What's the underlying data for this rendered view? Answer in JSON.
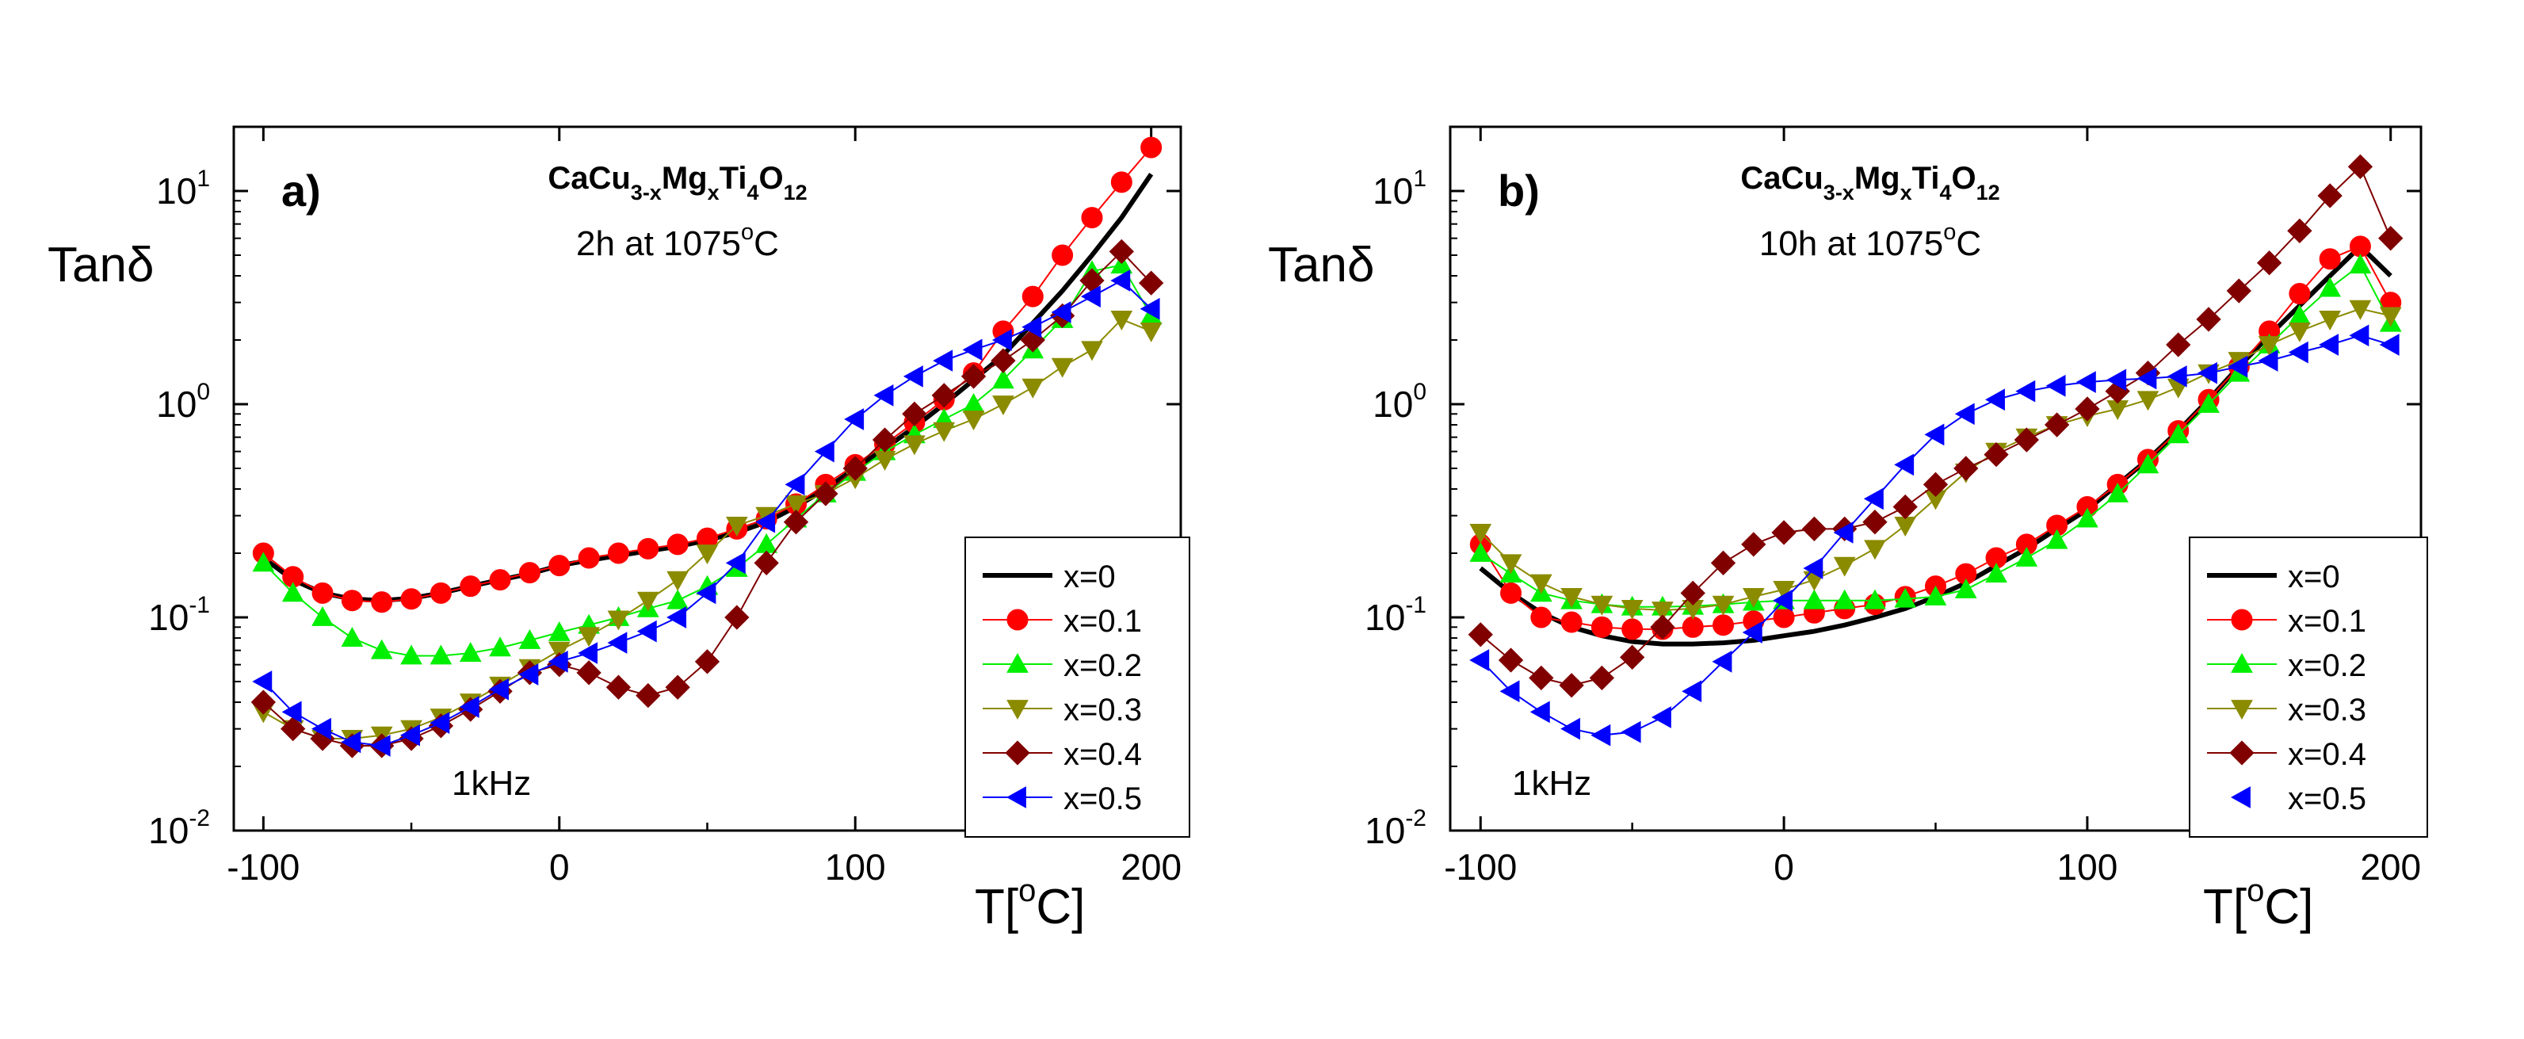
{
  "chart_data": [
    {
      "type": "scatter",
      "panel": "a)",
      "title_base": "CaCu",
      "title_sub1": "3-x",
      "title_mid": "Mg",
      "title_sub2": "x",
      "title_mid2": "Ti",
      "title_sub3": "4",
      "title_mid3": "O",
      "title_sub4": "12",
      "subtitle_main": "2h at 1075",
      "subtitle_sup": "o",
      "subtitle_end": "C",
      "annotation": "1kHz",
      "ylabel": "Tanδ",
      "xlabel_main": "T[",
      "xlabel_sup": "o",
      "xlabel_end": "C]",
      "xlim": [
        -110,
        210
      ],
      "ylim": [
        0.01,
        20
      ],
      "xticks": [
        -100,
        0,
        100,
        200
      ],
      "xtick_labels": [
        "-100",
        "0",
        "100",
        "200"
      ],
      "yticks": [
        0.01,
        0.1,
        1,
        10
      ],
      "ytick_bases": [
        "10",
        "10",
        "10",
        "10"
      ],
      "ytick_exps": [
        "-2",
        "-1",
        "0",
        "1"
      ],
      "legend_position": "bottom-right",
      "series": [
        {
          "name": "x=0",
          "color": "#000000",
          "marker": "line",
          "x": [
            -100,
            -90,
            -80,
            -70,
            -60,
            -50,
            -40,
            -30,
            -20,
            -10,
            0,
            10,
            20,
            30,
            40,
            50,
            60,
            70,
            80,
            90,
            100,
            110,
            120,
            130,
            140,
            150,
            160,
            170,
            180,
            190,
            200
          ],
          "y": [
            0.19,
            0.15,
            0.13,
            0.122,
            0.12,
            0.123,
            0.13,
            0.14,
            0.15,
            0.16,
            0.175,
            0.185,
            0.195,
            0.205,
            0.215,
            0.23,
            0.25,
            0.28,
            0.33,
            0.4,
            0.5,
            0.62,
            0.78,
            1.0,
            1.3,
            1.7,
            2.4,
            3.4,
            5.0,
            7.5,
            12.0
          ]
        },
        {
          "name": "x=0.1",
          "color": "#ff0000",
          "marker": "circle",
          "x": [
            -100,
            -90,
            -80,
            -70,
            -60,
            -50,
            -40,
            -30,
            -20,
            -10,
            0,
            10,
            20,
            30,
            40,
            50,
            60,
            70,
            80,
            90,
            100,
            110,
            120,
            130,
            140,
            150,
            160,
            170,
            180,
            190,
            200
          ],
          "y": [
            0.2,
            0.155,
            0.13,
            0.12,
            0.118,
            0.122,
            0.13,
            0.14,
            0.15,
            0.162,
            0.175,
            0.19,
            0.2,
            0.21,
            0.22,
            0.235,
            0.26,
            0.29,
            0.34,
            0.42,
            0.52,
            0.65,
            0.82,
            1.05,
            1.4,
            2.2,
            3.2,
            5.0,
            7.5,
            11.0,
            16.0
          ]
        },
        {
          "name": "x=0.2",
          "color": "#00ee00",
          "marker": "triangle-up",
          "x": [
            -100,
            -90,
            -80,
            -70,
            -60,
            -50,
            -40,
            -30,
            -20,
            -10,
            0,
            10,
            20,
            30,
            40,
            50,
            60,
            70,
            80,
            90,
            100,
            110,
            120,
            130,
            140,
            150,
            160,
            170,
            180,
            190,
            200
          ],
          "y": [
            0.18,
            0.13,
            0.1,
            0.08,
            0.07,
            0.066,
            0.066,
            0.068,
            0.072,
            0.078,
            0.085,
            0.092,
            0.1,
            0.11,
            0.12,
            0.14,
            0.17,
            0.22,
            0.29,
            0.38,
            0.48,
            0.6,
            0.72,
            0.85,
            1.0,
            1.3,
            1.8,
            2.5,
            4.2,
            4.5,
            2.6
          ]
        },
        {
          "name": "x=0.3",
          "color": "#8b8b00",
          "marker": "triangle-down",
          "x": [
            -100,
            -90,
            -80,
            -70,
            -60,
            -50,
            -40,
            -30,
            -20,
            -10,
            0,
            10,
            20,
            30,
            40,
            50,
            60,
            70,
            80,
            90,
            100,
            110,
            120,
            130,
            140,
            150,
            160,
            170,
            180,
            190,
            200
          ],
          "y": [
            0.036,
            0.03,
            0.027,
            0.027,
            0.028,
            0.03,
            0.034,
            0.04,
            0.048,
            0.058,
            0.07,
            0.082,
            0.098,
            0.12,
            0.15,
            0.2,
            0.27,
            0.3,
            0.34,
            0.38,
            0.45,
            0.55,
            0.65,
            0.75,
            0.85,
            1.0,
            1.2,
            1.5,
            1.8,
            2.5,
            2.2
          ]
        },
        {
          "name": "x=0.4",
          "color": "#800000",
          "marker": "diamond",
          "x": [
            -100,
            -90,
            -80,
            -70,
            -60,
            -50,
            -40,
            -30,
            -20,
            -10,
            0,
            10,
            20,
            30,
            40,
            50,
            60,
            70,
            80,
            90,
            100,
            110,
            120,
            130,
            140,
            150,
            160,
            170,
            180,
            190,
            200
          ],
          "y": [
            0.04,
            0.03,
            0.027,
            0.025,
            0.025,
            0.027,
            0.031,
            0.037,
            0.045,
            0.055,
            0.06,
            0.055,
            0.047,
            0.043,
            0.047,
            0.062,
            0.1,
            0.18,
            0.28,
            0.38,
            0.5,
            0.68,
            0.9,
            1.1,
            1.35,
            1.6,
            2.0,
            2.6,
            3.8,
            5.2,
            3.7
          ]
        },
        {
          "name": "x=0.5",
          "color": "#0000ff",
          "marker": "triangle-left",
          "x": [
            -100,
            -90,
            -80,
            -70,
            -60,
            -50,
            -40,
            -30,
            -20,
            -10,
            0,
            10,
            20,
            30,
            40,
            50,
            60,
            70,
            80,
            90,
            100,
            110,
            120,
            130,
            140,
            150,
            160,
            170,
            180,
            190,
            200
          ],
          "y": [
            0.05,
            0.036,
            0.03,
            0.026,
            0.025,
            0.028,
            0.032,
            0.038,
            0.046,
            0.054,
            0.062,
            0.068,
            0.076,
            0.086,
            0.1,
            0.13,
            0.18,
            0.28,
            0.42,
            0.6,
            0.85,
            1.1,
            1.35,
            1.6,
            1.8,
            2.0,
            2.3,
            2.7,
            3.2,
            3.8,
            2.8
          ]
        }
      ]
    },
    {
      "type": "scatter",
      "panel": "b)",
      "title_base": "CaCu",
      "title_sub1": "3-x",
      "title_mid": "Mg",
      "title_sub2": "x",
      "title_mid2": "Ti",
      "title_sub3": "4",
      "title_mid3": "O",
      "title_sub4": "12",
      "subtitle_main": "10h at 1075",
      "subtitle_sup": "o",
      "subtitle_end": "C",
      "annotation": "1kHz",
      "ylabel": "Tanδ",
      "xlabel_main": "T[",
      "xlabel_sup": "o",
      "xlabel_end": "C]",
      "xlim": [
        -110,
        210
      ],
      "ylim": [
        0.01,
        20
      ],
      "xticks": [
        -100,
        0,
        100,
        200
      ],
      "xtick_labels": [
        "-100",
        "0",
        "100",
        "200"
      ],
      "yticks": [
        0.01,
        0.1,
        1,
        10
      ],
      "ytick_bases": [
        "10",
        "10",
        "10",
        "10"
      ],
      "ytick_exps": [
        "-2",
        "-1",
        "0",
        "1"
      ],
      "legend_position": "bottom-right",
      "series": [
        {
          "name": "x=0",
          "color": "#000000",
          "marker": "line",
          "x": [
            -100,
            -90,
            -80,
            -70,
            -60,
            -50,
            -40,
            -30,
            -20,
            -10,
            0,
            10,
            20,
            30,
            40,
            50,
            60,
            70,
            80,
            90,
            100,
            110,
            120,
            130,
            140,
            150,
            160,
            170,
            180,
            190,
            200
          ],
          "y": [
            0.17,
            0.13,
            0.105,
            0.09,
            0.082,
            0.077,
            0.075,
            0.075,
            0.076,
            0.078,
            0.082,
            0.086,
            0.092,
            0.1,
            0.11,
            0.125,
            0.145,
            0.175,
            0.21,
            0.26,
            0.32,
            0.42,
            0.55,
            0.75,
            1.05,
            1.5,
            2.1,
            2.9,
            4.0,
            5.5,
            4.0
          ]
        },
        {
          "name": "x=0.1",
          "color": "#ff0000",
          "marker": "circle",
          "x": [
            -100,
            -90,
            -80,
            -70,
            -60,
            -50,
            -40,
            -30,
            -20,
            -10,
            0,
            10,
            20,
            30,
            40,
            50,
            60,
            70,
            80,
            90,
            100,
            110,
            120,
            130,
            140,
            150,
            160,
            170,
            180,
            190,
            200
          ],
          "y": [
            0.22,
            0.13,
            0.1,
            0.095,
            0.09,
            0.088,
            0.088,
            0.09,
            0.092,
            0.096,
            0.1,
            0.105,
            0.11,
            0.115,
            0.125,
            0.14,
            0.16,
            0.19,
            0.22,
            0.27,
            0.33,
            0.42,
            0.55,
            0.75,
            1.05,
            1.5,
            2.2,
            3.3,
            4.8,
            5.5,
            3.0
          ]
        },
        {
          "name": "x=0.2",
          "color": "#00ee00",
          "marker": "triangle-up",
          "x": [
            -100,
            -90,
            -80,
            -70,
            -60,
            -50,
            -40,
            -30,
            -20,
            -10,
            0,
            10,
            20,
            30,
            40,
            50,
            60,
            70,
            80,
            90,
            100,
            110,
            120,
            130,
            140,
            150,
            160,
            170,
            180,
            190,
            200
          ],
          "y": [
            0.2,
            0.16,
            0.13,
            0.12,
            0.115,
            0.112,
            0.112,
            0.113,
            0.115,
            0.118,
            0.12,
            0.12,
            0.12,
            0.12,
            0.122,
            0.125,
            0.135,
            0.16,
            0.19,
            0.23,
            0.29,
            0.38,
            0.52,
            0.72,
            1.0,
            1.4,
            1.9,
            2.6,
            3.5,
            4.5,
            2.4
          ]
        },
        {
          "name": "x=0.3",
          "color": "#8b8b00",
          "marker": "triangle-down",
          "x": [
            -100,
            -90,
            -80,
            -70,
            -60,
            -50,
            -40,
            -30,
            -20,
            -10,
            0,
            10,
            20,
            30,
            40,
            50,
            60,
            70,
            80,
            90,
            100,
            110,
            120,
            130,
            140,
            150,
            160,
            170,
            180,
            190,
            200
          ],
          "y": [
            0.25,
            0.18,
            0.145,
            0.125,
            0.115,
            0.11,
            0.108,
            0.11,
            0.115,
            0.125,
            0.135,
            0.15,
            0.175,
            0.21,
            0.27,
            0.36,
            0.48,
            0.6,
            0.7,
            0.8,
            0.88,
            0.95,
            1.05,
            1.2,
            1.4,
            1.6,
            1.9,
            2.2,
            2.5,
            2.8,
            2.6
          ]
        },
        {
          "name": "x=0.4",
          "color": "#800000",
          "marker": "diamond",
          "x": [
            -100,
            -90,
            -80,
            -70,
            -60,
            -50,
            -40,
            -30,
            -20,
            -10,
            0,
            10,
            20,
            30,
            40,
            50,
            60,
            70,
            80,
            90,
            100,
            110,
            120,
            130,
            140,
            150,
            160,
            170,
            180,
            190,
            200
          ],
          "y": [
            0.083,
            0.063,
            0.052,
            0.048,
            0.052,
            0.065,
            0.09,
            0.13,
            0.18,
            0.22,
            0.25,
            0.26,
            0.26,
            0.28,
            0.33,
            0.42,
            0.5,
            0.58,
            0.68,
            0.8,
            0.95,
            1.15,
            1.4,
            1.9,
            2.5,
            3.4,
            4.6,
            6.5,
            9.5,
            13.0,
            6.0
          ]
        },
        {
          "name": "x=0.5",
          "color": "#0000ff",
          "marker": "triangle-left",
          "x": [
            -100,
            -90,
            -80,
            -70,
            -60,
            -50,
            -40,
            -30,
            -20,
            -10,
            0,
            10,
            20,
            30,
            40,
            50,
            60,
            70,
            80,
            90,
            100,
            110,
            120,
            130,
            140,
            150,
            160,
            170,
            180,
            190,
            200
          ],
          "y": [
            0.063,
            0.045,
            0.036,
            0.03,
            0.028,
            0.029,
            0.034,
            0.045,
            0.062,
            0.085,
            0.12,
            0.17,
            0.25,
            0.36,
            0.52,
            0.72,
            0.9,
            1.05,
            1.15,
            1.22,
            1.27,
            1.3,
            1.32,
            1.35,
            1.4,
            1.5,
            1.6,
            1.75,
            1.9,
            2.1,
            1.9
          ]
        }
      ]
    }
  ]
}
